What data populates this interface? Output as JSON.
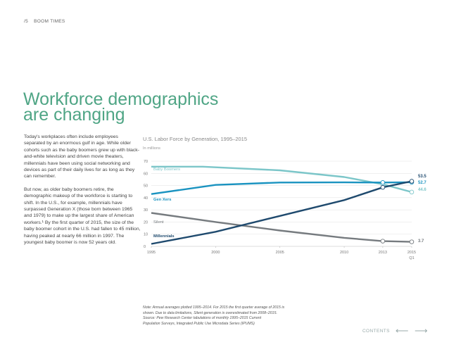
{
  "header": {
    "page_number": "/5",
    "section": "BOOM TIMES"
  },
  "title": {
    "line1": "Workforce demographics",
    "line2": "are changing"
  },
  "body": {
    "paragraphs": [
      "Today's workplaces often include employees separated by an enormous gulf in age. While older cohorts such as the baby boomers grew up with black-and-white television and driven movie theaters, millennials have been using social networking and devices as part of their daily lives for as long as they can remember.",
      "But now, as older baby boomers retire, the demographic makeup of the workforce is starting to shift. In the U.S., for example, millennials have surpassed Generation X (those born between 1965 and 1979) to make up the largest share of American workers.¹ By the first quarter of 2015, the size of the baby boomer cohort in the U.S. had fallen to 45 million, having peaked at nearly 66 million in 1997. The youngest baby boomer is now 52 years old."
    ]
  },
  "chart_data": {
    "type": "line",
    "title": "U.S. Labor Force by Generation, 1995–2015",
    "ylabel": "In millions",
    "ylim": [
      0,
      70
    ],
    "yticks": [
      0,
      10,
      20,
      30,
      40,
      50,
      60,
      70
    ],
    "xlim": [
      1995,
      2015.25
    ],
    "xticks": [
      {
        "value": 1995,
        "label": "1995"
      },
      {
        "value": 2000,
        "label": "2000"
      },
      {
        "value": 2005,
        "label": "2005"
      },
      {
        "value": 2010,
        "label": "2010"
      },
      {
        "value": 2013,
        "label": "2013"
      },
      {
        "value": 2015.25,
        "label": "2015",
        "sublabel": "Q1"
      }
    ],
    "series": [
      {
        "name": "Baby Boomers",
        "color": "#7cc6c9",
        "points": [
          [
            1995,
            65.5
          ],
          [
            1999,
            65.5
          ],
          [
            2005,
            62.5
          ],
          [
            2010,
            57
          ],
          [
            2013,
            51
          ],
          [
            2015.25,
            44.6
          ]
        ],
        "end_label": "44.6",
        "markers": [
          2013,
          2015.25
        ]
      },
      {
        "name": "Gen Xers",
        "color": "#1a93c0",
        "points": [
          [
            1995,
            43
          ],
          [
            2000,
            50.5
          ],
          [
            2005,
            52.5
          ],
          [
            2010,
            52.6
          ],
          [
            2013,
            52.5
          ],
          [
            2015.25,
            52.7
          ]
        ],
        "end_label": "52.7",
        "markers": [
          2013,
          2015.25
        ]
      },
      {
        "name": "Silent",
        "color": "#767b7f",
        "points": [
          [
            1995,
            27.5
          ],
          [
            2000,
            20
          ],
          [
            2005,
            13
          ],
          [
            2010,
            7
          ],
          [
            2013,
            4.3
          ],
          [
            2015.25,
            3.7
          ]
        ],
        "end_label": "3.7",
        "markers": [
          2013,
          2015.25
        ]
      },
      {
        "name": "Millennials",
        "color": "#1f4a6e",
        "points": [
          [
            1995,
            2
          ],
          [
            2000,
            12
          ],
          [
            2005,
            25
          ],
          [
            2010,
            38
          ],
          [
            2013,
            48.5
          ],
          [
            2015.25,
            53.5
          ]
        ],
        "end_label": "53.5",
        "markers": [
          2013,
          2015.25
        ]
      }
    ]
  },
  "note": {
    "lines": [
      "Note: Annual averages plotted 1995–2014. For 2015 the first quarter average of 2015 is",
      "shown. Due to data limitations, Silent generation is overestimated from 2008–2015.",
      "Source: Pew Research Center tabulations of monthly 1995–2015 Current",
      "Population Surveys, Integrated Public Use Microdata Series (IPUMS)"
    ]
  },
  "footer": {
    "contents_label": "CONTENTS",
    "prev_arrow": "⟵",
    "next_arrow": "⟶"
  }
}
